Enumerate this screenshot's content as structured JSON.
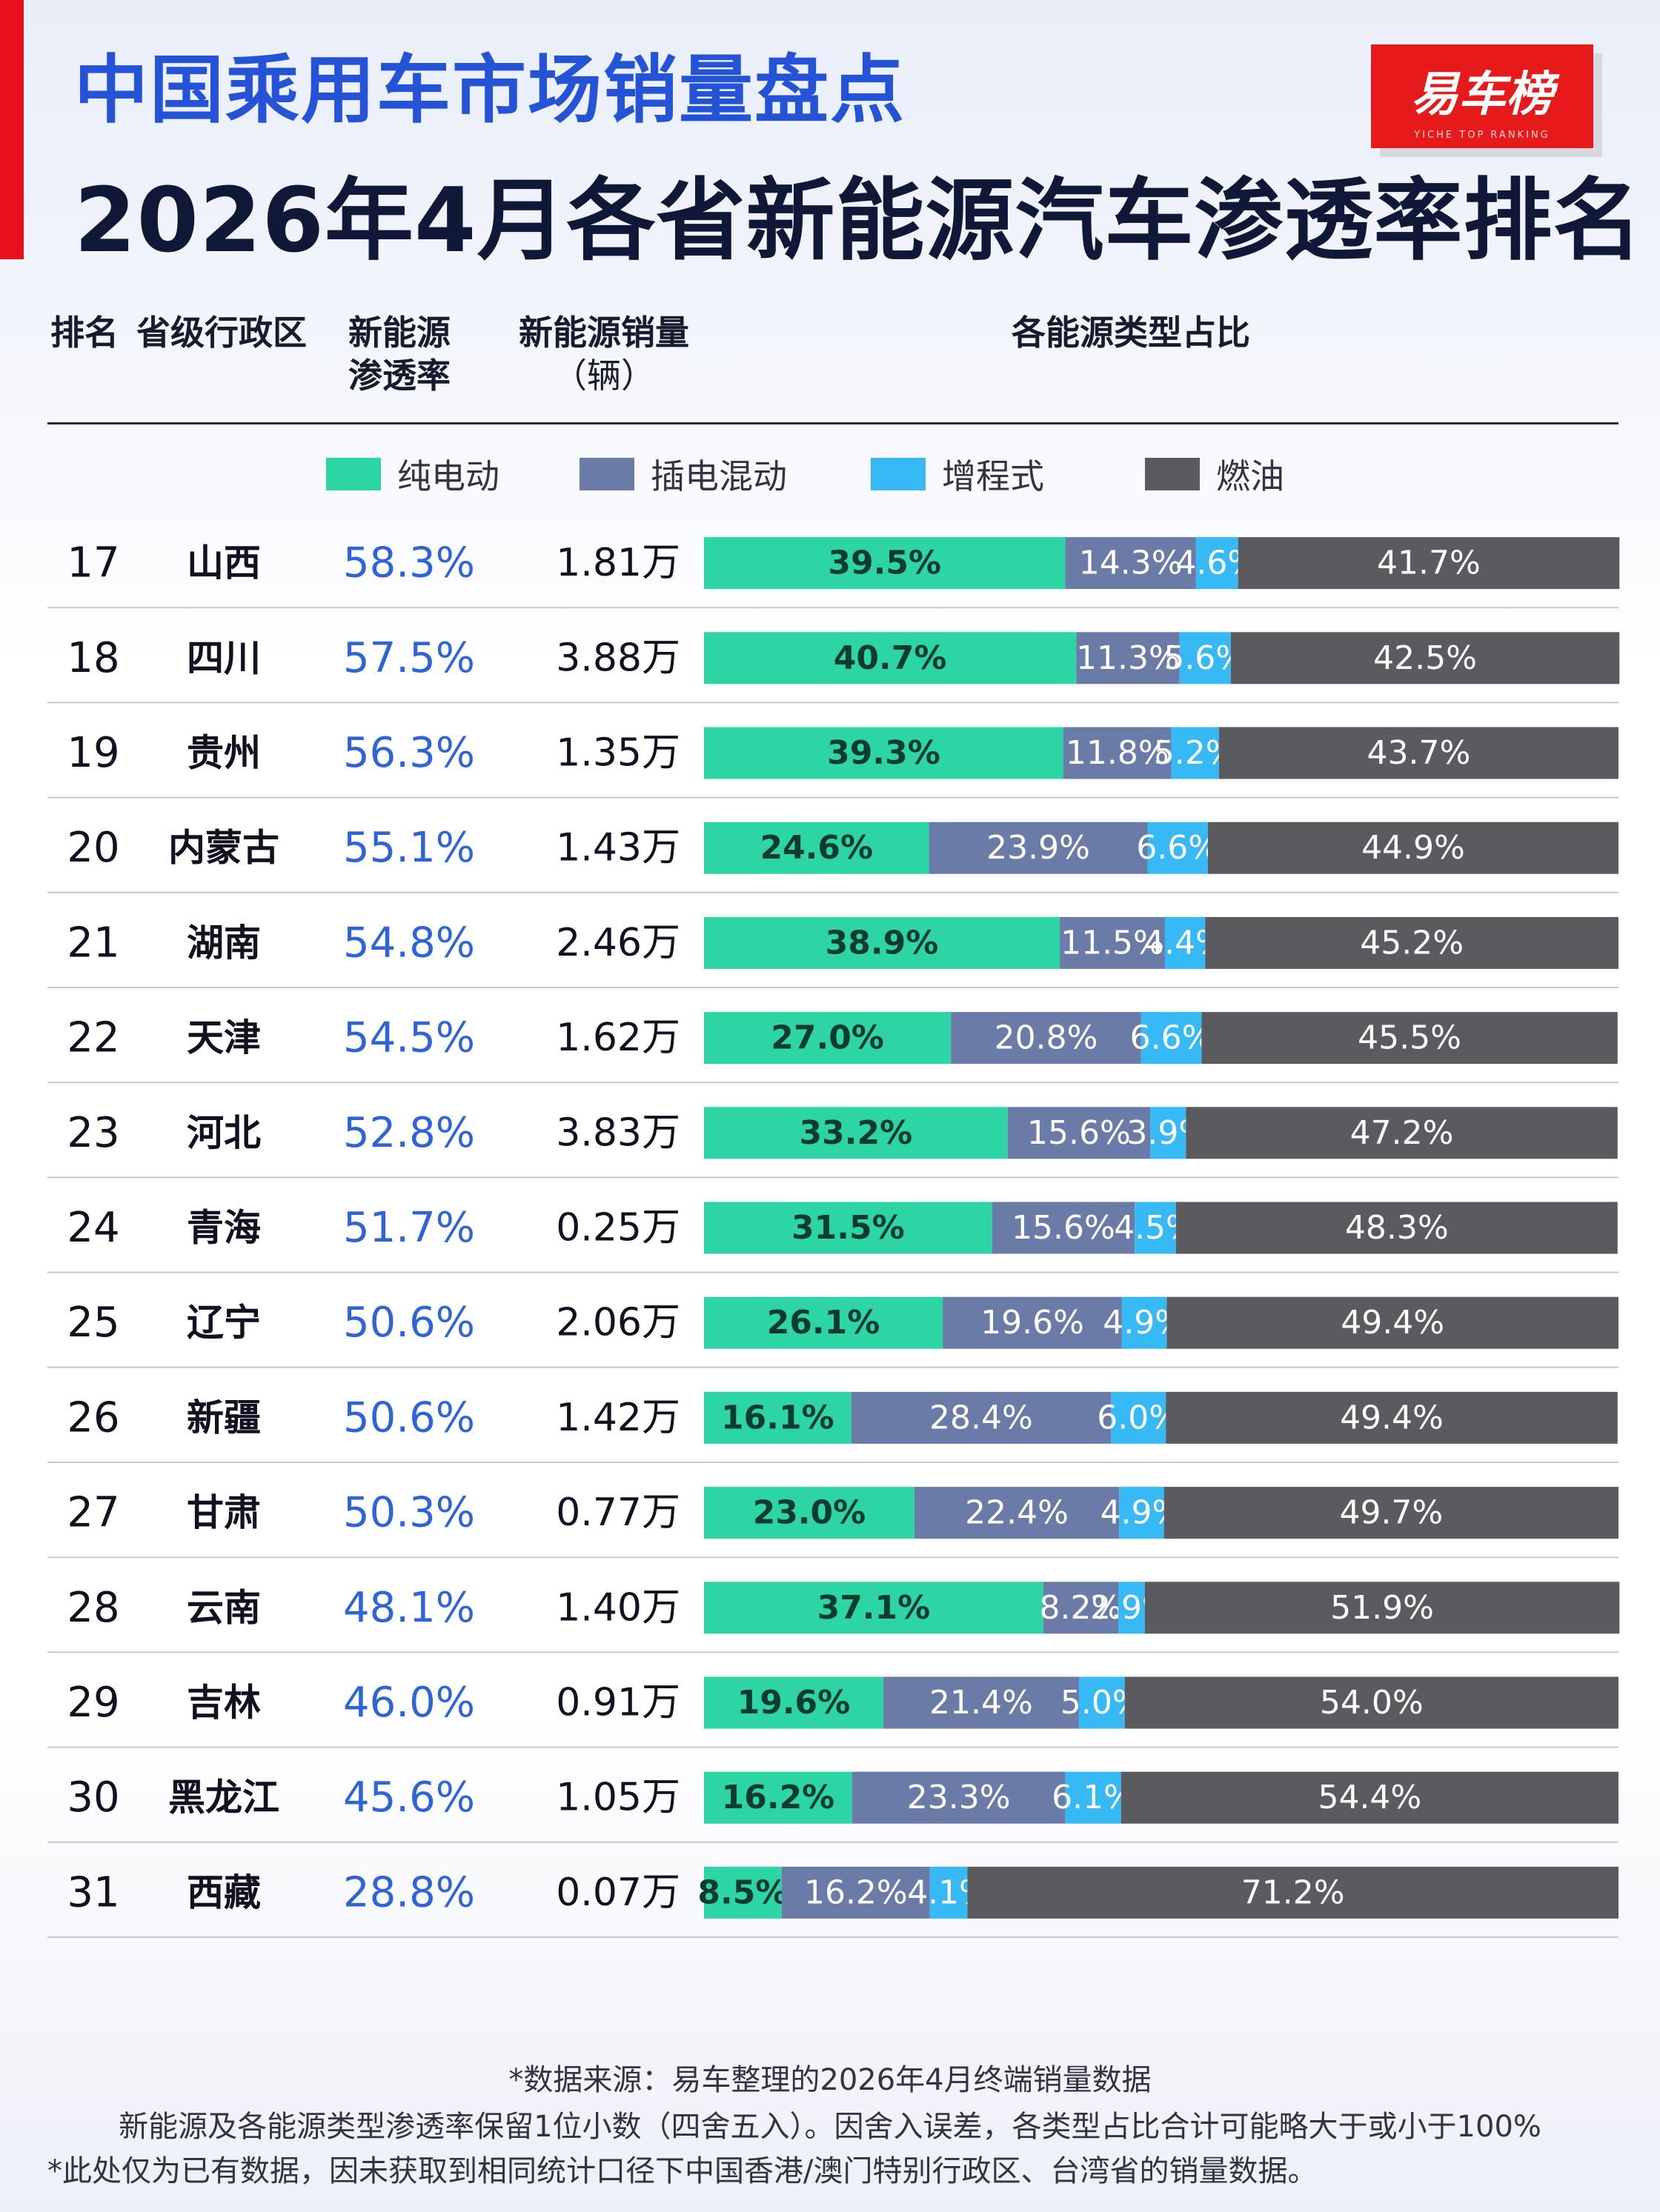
{
  "header": {
    "title_top": "中国乘用车市场销量盘点",
    "title_main": "2026年4月各省新能源汽车渗透率排名",
    "logo_text": "易车榜",
    "logo_sub": "YICHE TOP RANKING"
  },
  "columns": {
    "rank": "排名",
    "province": "省级行政区",
    "penetration_line1": "新能源",
    "penetration_line2": "渗透率",
    "sales_line1": "新能源销量",
    "sales_line2": "（辆）",
    "share": "各能源类型占比"
  },
  "colors": {
    "bev": "#2dd4a4",
    "phev": "#6b7ba8",
    "erev": "#36b9f5",
    "ice": "#5b5b5f",
    "penetration_text": "#2f64d8"
  },
  "chart_data": {
    "type": "table",
    "stacked_bar_unit": "%",
    "series": [
      {
        "key": "bev",
        "name": "纯电动"
      },
      {
        "key": "phev",
        "name": "插电混动"
      },
      {
        "key": "erev",
        "name": "增程式"
      },
      {
        "key": "ice",
        "name": "燃油"
      }
    ],
    "rows": [
      {
        "rank": "17",
        "province": "山西",
        "penetration": "58.3%",
        "sales": "1.81万",
        "shares": [
          39.5,
          14.3,
          4.6,
          41.7
        ]
      },
      {
        "rank": "18",
        "province": "四川",
        "penetration": "57.5%",
        "sales": "3.88万",
        "shares": [
          40.7,
          11.3,
          5.6,
          42.5
        ]
      },
      {
        "rank": "19",
        "province": "贵州",
        "penetration": "56.3%",
        "sales": "1.35万",
        "shares": [
          39.3,
          11.8,
          5.2,
          43.7
        ]
      },
      {
        "rank": "20",
        "province": "内蒙古",
        "penetration": "55.1%",
        "sales": "1.43万",
        "shares": [
          24.6,
          23.9,
          6.6,
          44.9
        ]
      },
      {
        "rank": "21",
        "province": "湖南",
        "penetration": "54.8%",
        "sales": "2.46万",
        "shares": [
          38.9,
          11.5,
          4.4,
          45.2
        ]
      },
      {
        "rank": "22",
        "province": "天津",
        "penetration": "54.5%",
        "sales": "1.62万",
        "shares": [
          27.0,
          20.8,
          6.6,
          45.5
        ]
      },
      {
        "rank": "23",
        "province": "河北",
        "penetration": "52.8%",
        "sales": "3.83万",
        "shares": [
          33.2,
          15.6,
          3.9,
          47.2
        ]
      },
      {
        "rank": "24",
        "province": "青海",
        "penetration": "51.7%",
        "sales": "0.25万",
        "shares": [
          31.5,
          15.6,
          4.5,
          48.3
        ]
      },
      {
        "rank": "25",
        "province": "辽宁",
        "penetration": "50.6%",
        "sales": "2.06万",
        "shares": [
          26.1,
          19.6,
          4.9,
          49.4
        ]
      },
      {
        "rank": "26",
        "province": "新疆",
        "penetration": "50.6%",
        "sales": "1.42万",
        "shares": [
          16.1,
          28.4,
          6.0,
          49.4
        ]
      },
      {
        "rank": "27",
        "province": "甘肃",
        "penetration": "50.3%",
        "sales": "0.77万",
        "shares": [
          23.0,
          22.4,
          4.9,
          49.7
        ]
      },
      {
        "rank": "28",
        "province": "云南",
        "penetration": "48.1%",
        "sales": "1.40万",
        "shares": [
          37.1,
          8.2,
          2.9,
          51.9
        ]
      },
      {
        "rank": "29",
        "province": "吉林",
        "penetration": "46.0%",
        "sales": "0.91万",
        "shares": [
          19.6,
          21.4,
          5.0,
          54.0
        ]
      },
      {
        "rank": "30",
        "province": "黑龙江",
        "penetration": "45.6%",
        "sales": "1.05万",
        "shares": [
          16.2,
          23.3,
          6.1,
          54.4
        ]
      },
      {
        "rank": "31",
        "province": "西藏",
        "penetration": "28.8%",
        "sales": "0.07万",
        "shares": [
          8.5,
          16.2,
          4.1,
          71.2
        ]
      }
    ]
  },
  "footer": {
    "line1": "*数据来源：易车整理的2026年4月终端销量数据",
    "line2": "新能源及各能源类型渗透率保留1位小数（四舍五入）。因舍入误差，各类型占比合计可能略大于或小于100%",
    "line3": "*此处仅为已有数据，因未获取到相同统计口径下中国香港/澳门特别行政区、台湾省的销量数据。"
  }
}
